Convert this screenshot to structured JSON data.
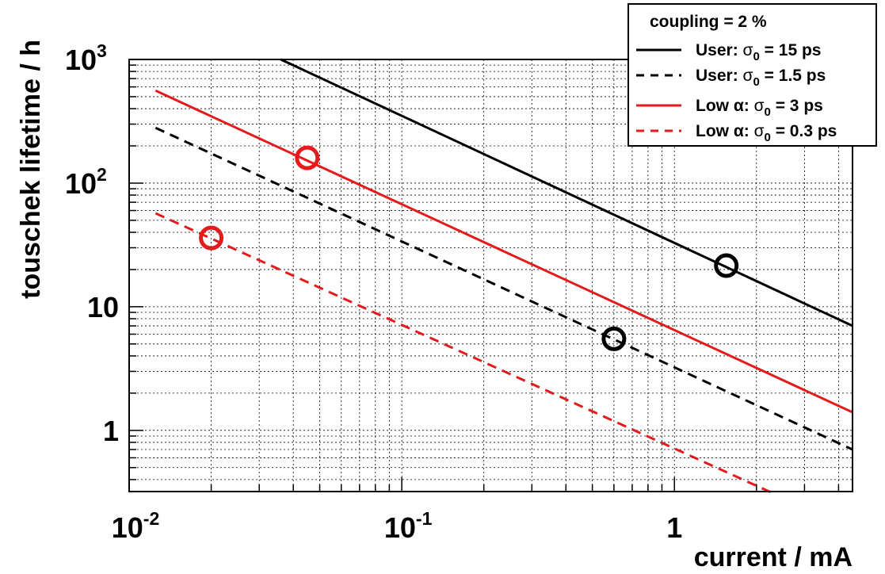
{
  "chart_data": {
    "type": "line",
    "x_scale": "log",
    "y_scale": "log",
    "xlim": [
      0.01,
      4.5
    ],
    "ylim": [
      0.32,
      1000
    ],
    "xlabel": "current / mA",
    "ylabel": "touschek lifetime / h",
    "grid": true,
    "legend_position": "top-right",
    "x_ticks": [
      {
        "value": 0.01,
        "base": "10",
        "exp": "-2"
      },
      {
        "value": 0.1,
        "base": "10",
        "exp": "-1"
      },
      {
        "value": 1,
        "base": "1",
        "exp": ""
      }
    ],
    "y_ticks": [
      {
        "value": 1,
        "base": "1",
        "exp": ""
      },
      {
        "value": 10,
        "base": "10",
        "exp": ""
      },
      {
        "value": 100,
        "base": "10",
        "exp": "2"
      },
      {
        "value": 1000,
        "base": "10",
        "exp": "3"
      }
    ],
    "legend_title": "coupling = 2 %",
    "series": [
      {
        "name": "User: σ0 = 15 ps",
        "prefix": "User: ",
        "sigma_value": " = 15 ps",
        "color": "#000000",
        "dash": "solid",
        "x": [
          0.036,
          4.5
        ],
        "y": [
          1000,
          7
        ]
      },
      {
        "name": "User: σ0 = 1.5 ps",
        "prefix": "User: ",
        "sigma_value": " = 1.5 ps",
        "color": "#000000",
        "dash": "dashed",
        "x": [
          0.0125,
          4.5
        ],
        "y": [
          280,
          0.7
        ]
      },
      {
        "name": "Low α: σ0 = 3 ps",
        "prefix": "Low  α: ",
        "sigma_value": " = 3 ps",
        "color": "#e41a1c",
        "dash": "solid",
        "x": [
          0.0125,
          4.5
        ],
        "y": [
          560,
          1.4
        ]
      },
      {
        "name": "Low α: σ0 = 0.3 ps",
        "prefix": "Low  α: ",
        "sigma_value": " = 0.3 ps",
        "color": "#e41a1c",
        "dash": "dashed",
        "x": [
          0.0125,
          2.3
        ],
        "y": [
          57,
          0.31
        ]
      }
    ],
    "markers": [
      {
        "x": 1.55,
        "y": 21.5,
        "color": "#000000"
      },
      {
        "x": 0.6,
        "y": 5.5,
        "color": "#000000"
      },
      {
        "x": 0.045,
        "y": 160,
        "color": "#e41a1c"
      },
      {
        "x": 0.02,
        "y": 36,
        "color": "#e41a1c"
      }
    ]
  }
}
